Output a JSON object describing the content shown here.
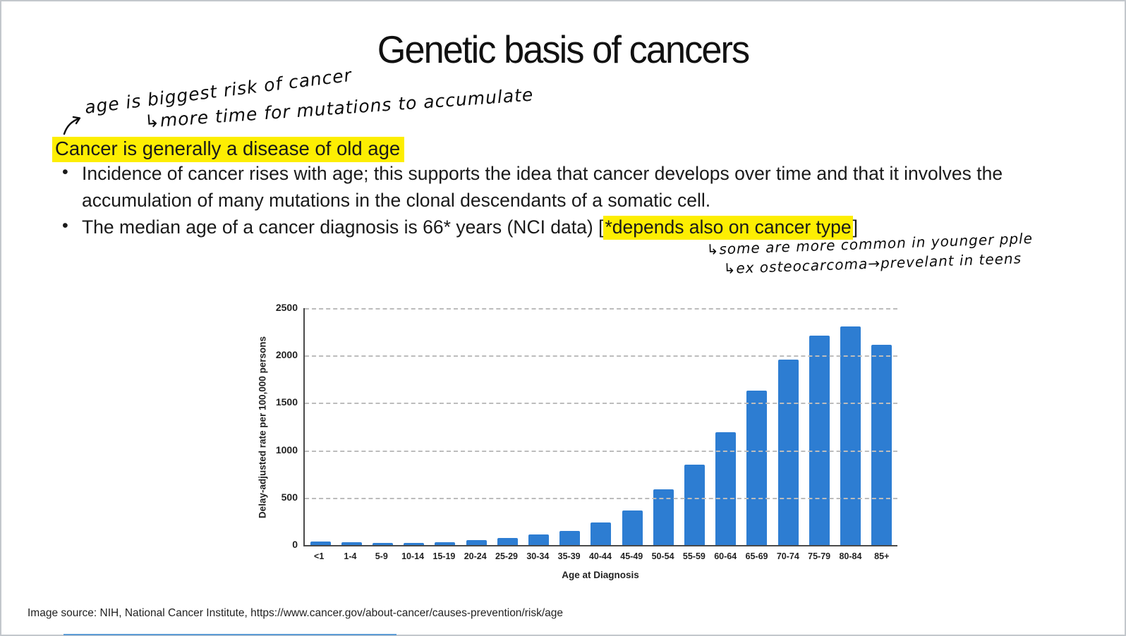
{
  "slide": {
    "title": "Genetic basis of cancers",
    "heading_highlighted": "Cancer is generally a disease of old age",
    "bullet1": "Incidence of cancer rises with age; this supports the idea that cancer develops over time and that it involves the accumulation of many mutations in the clonal descendants of a somatic cell.",
    "bullet2_prefix": "The median age of a cancer diagnosis is 66* years (NCI data) [",
    "bullet2_highlight": "*depends also on cancer type",
    "bullet2_suffix": "]",
    "source_line": "Image source: NIH, National Cancer Institute, https://www.cancer.gov/about-cancer/causes-prevention/risk/age"
  },
  "annotations": {
    "top_line1": "age is biggest risk of cancer",
    "top_line2": "↳more time for mutations to accumulate",
    "side_line1": "↳some are more common in younger pple",
    "side_line2": "↳ex osteocarcoma→prevelant in teens"
  },
  "colors": {
    "bar_blue": "#2d7dd2",
    "highlight_yellow": "#fdee02",
    "gridline_grey": "#bcbcbc",
    "progress_bar_blue": "#5b9bd5"
  },
  "chart_data": {
    "type": "bar",
    "title": "",
    "categories": [
      "<1",
      "1-4",
      "5-9",
      "10-14",
      "15-19",
      "20-24",
      "25-29",
      "30-34",
      "35-39",
      "40-44",
      "45-49",
      "50-54",
      "55-59",
      "60-64",
      "65-69",
      "70-74",
      "75-79",
      "80-84",
      "85+"
    ],
    "values": [
      35,
      33,
      20,
      25,
      30,
      50,
      75,
      110,
      150,
      235,
      365,
      585,
      850,
      1190,
      1630,
      1960,
      2210,
      2310,
      2110
    ],
    "xlabel": "Age at Diagnosis",
    "ylabel": "Delay-adjusted rate per 100,000 persons",
    "ylim": [
      0,
      2500
    ],
    "yticks": [
      0,
      500,
      1000,
      1500,
      2000,
      2500
    ],
    "grid": "dashed horizontal",
    "legend": "none"
  }
}
